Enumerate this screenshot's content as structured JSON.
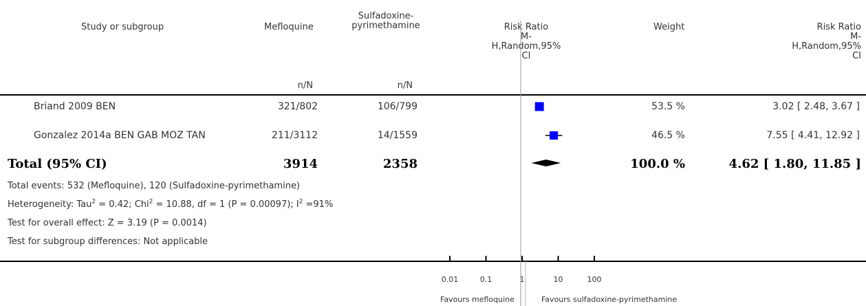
{
  "headers": {
    "study": "Study or subgroup",
    "exp": "Mefloquine",
    "ctrl": "Sulfadoxine-\npyrimethamine",
    "exp_sub": "n/N",
    "ctrl_sub": "n/N",
    "plot_title": "Risk Ratio\nM-\nH,Random,95%\nCI",
    "weight": "Weight",
    "rr_title": "Risk Ratio\nM-\nH,Random,95%\nCI"
  },
  "total": {
    "label": "Total (95% CI)",
    "exp": "3914",
    "ctrl": "2358",
    "weight": "100.0 %",
    "ci": "4.62 [ 1.80, 11.85 ]"
  },
  "notes": {
    "events": "Total events: 532 (Mefloquine), 120 (Sulfadoxine-pyrimethamine)",
    "heterogeneity_pre": "Heterogeneity: Tau",
    "heterogeneity_mid1": " = 0.42; Chi",
    "heterogeneity_mid2": " = 10.88, df = 1 (P = 0.00097); I",
    "heterogeneity_post": " =91%",
    "sup2": "2",
    "overall": "Test for overall effect: Z = 3.19 (P = 0.0014)",
    "subgroup": "Test for subgroup differences: Not applicable"
  },
  "axis": {
    "favours_left": "Favours mefloquine",
    "favours_right": "Favours sulfadoxine-pyrimethamine"
  },
  "chart_data": {
    "type": "forest",
    "scale": "log",
    "xlim": [
      0.01,
      100
    ],
    "ticks": [
      0.01,
      0.1,
      1,
      10,
      100
    ],
    "tick_labels": [
      "0.01",
      "0.1",
      "1",
      "10",
      "100"
    ],
    "null_value": 1,
    "series": [
      {
        "study": "Briand 2009 BEN",
        "exp": "321/802",
        "ctrl": "106/799",
        "weight": "53.5 %",
        "ci_text": "3.02 [ 2.48, 3.67 ]",
        "rr": 3.02,
        "lo": 2.48,
        "hi": 3.67,
        "weight_pct": 53.5
      },
      {
        "study": "Gonzalez 2014a BEN GAB MOZ TAN",
        "exp": "211/3112",
        "ctrl": "14/1559",
        "weight": "46.5 %",
        "ci_text": "7.55 [ 4.41, 12.92 ]",
        "rr": 7.55,
        "lo": 4.41,
        "hi": 12.92,
        "weight_pct": 46.5
      }
    ],
    "summary": {
      "rr": 4.62,
      "lo": 1.8,
      "hi": 11.85
    },
    "colors": {
      "study_marker": "#0000ff",
      "summary_marker": "#000000"
    }
  }
}
